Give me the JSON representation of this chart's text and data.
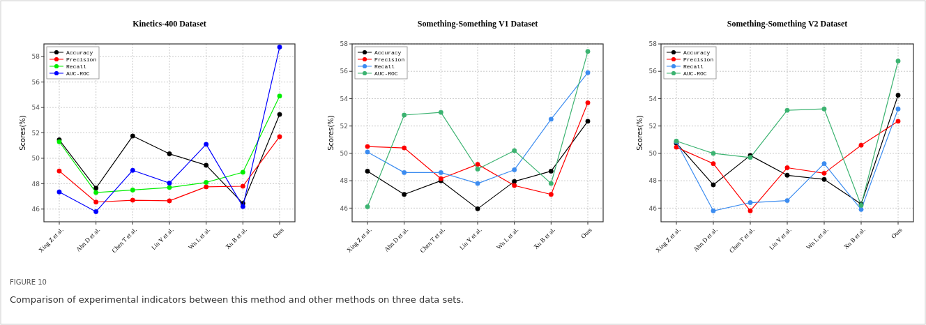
{
  "chart_data": [
    {
      "type": "line",
      "title": "Kinetics-400 Dataset",
      "ylabel": "Scores(%)",
      "categories": [
        "Xing Z et al.",
        "Ahn D et al.",
        "Chen T et al.",
        "Liu Y et al.",
        "Wu L et al.",
        "Xu B et al.",
        "Ours"
      ],
      "ylim": [
        45,
        59
      ],
      "yticks": [
        46,
        48,
        50,
        52,
        54,
        56,
        58
      ],
      "grid": true,
      "legend": "top left",
      "marker": "circle",
      "line_style": "solid",
      "annotations": [
        "FIGURE 10",
        "Comparison of experimental indicators between this method and other methods on three data sets."
      ],
      "series": [
        {
          "name": "Accuracy",
          "color": "#000000",
          "values": [
            51.45,
            47.65,
            51.75,
            50.35,
            49.45,
            46.45,
            53.45
          ]
        },
        {
          "name": "Precision",
          "color": "#ff0000",
          "values": [
            49.0,
            46.55,
            46.7,
            46.65,
            47.75,
            47.8,
            51.7
          ]
        },
        {
          "name": "Recall",
          "color": "#00ee00",
          "values": [
            51.3,
            47.3,
            47.5,
            47.7,
            48.1,
            48.9,
            54.9
          ]
        },
        {
          "name": "AUC-ROC",
          "color": "#0000ff",
          "values": [
            47.35,
            45.8,
            49.05,
            48.05,
            51.1,
            46.2,
            58.75
          ]
        }
      ]
    },
    {
      "type": "line",
      "title": "Something-Something V1 Dataset",
      "ylabel": "Scores(%)",
      "categories": [
        "Xing Z et al.",
        "Ahn D et al.",
        "Chen T et al.",
        "Liu Y et al.",
        "Wu L et al.",
        "Xu B et al.",
        "Ours"
      ],
      "ylim": [
        45,
        58
      ],
      "yticks": [
        46,
        48,
        50,
        52,
        54,
        56,
        58
      ],
      "grid": true,
      "legend": "top left",
      "marker": "circle",
      "line_style": "solid",
      "series": [
        {
          "name": "Accuracy",
          "color": "#000000",
          "values": [
            48.7,
            47.0,
            48.0,
            45.95,
            47.95,
            48.7,
            52.35
          ]
        },
        {
          "name": "Precision",
          "color": "#ff0000",
          "values": [
            50.5,
            50.4,
            48.15,
            49.2,
            47.65,
            47.0,
            53.7
          ]
        },
        {
          "name": "Recall",
          "color": "#3c8cf0",
          "values": [
            50.1,
            48.6,
            48.6,
            47.8,
            48.8,
            52.5,
            55.9
          ]
        },
        {
          "name": "AUC-ROC",
          "color": "#3cb371",
          "values": [
            46.1,
            52.8,
            53.0,
            48.85,
            50.2,
            47.8,
            57.45
          ]
        }
      ]
    },
    {
      "type": "line",
      "title": "Something-Something V2 Dataset",
      "ylabel": "Scores(%)",
      "categories": [
        "Xing Z et al.",
        "Ahn D et al.",
        "Chen T et al.",
        "Liu Y et al.",
        "Wu L et al.",
        "Xu B et al.",
        "Ours"
      ],
      "ylim": [
        45,
        58
      ],
      "yticks": [
        46,
        48,
        50,
        52,
        54,
        56,
        58
      ],
      "grid": true,
      "legend": "top left",
      "marker": "circle",
      "line_style": "solid",
      "series": [
        {
          "name": "Accuracy",
          "color": "#000000",
          "values": [
            50.75,
            47.7,
            49.85,
            48.4,
            48.1,
            46.3,
            54.25
          ]
        },
        {
          "name": "Precision",
          "color": "#ff0000",
          "values": [
            50.45,
            49.25,
            45.8,
            48.95,
            48.55,
            50.6,
            52.35
          ]
        },
        {
          "name": "Recall",
          "color": "#3c8cf0",
          "values": [
            50.85,
            45.8,
            46.4,
            46.55,
            49.25,
            45.9,
            53.25
          ]
        },
        {
          "name": "AUC-ROC",
          "color": "#3cb371",
          "values": [
            50.9,
            50.0,
            49.7,
            53.15,
            53.25,
            46.2,
            56.75
          ]
        }
      ]
    }
  ]
}
